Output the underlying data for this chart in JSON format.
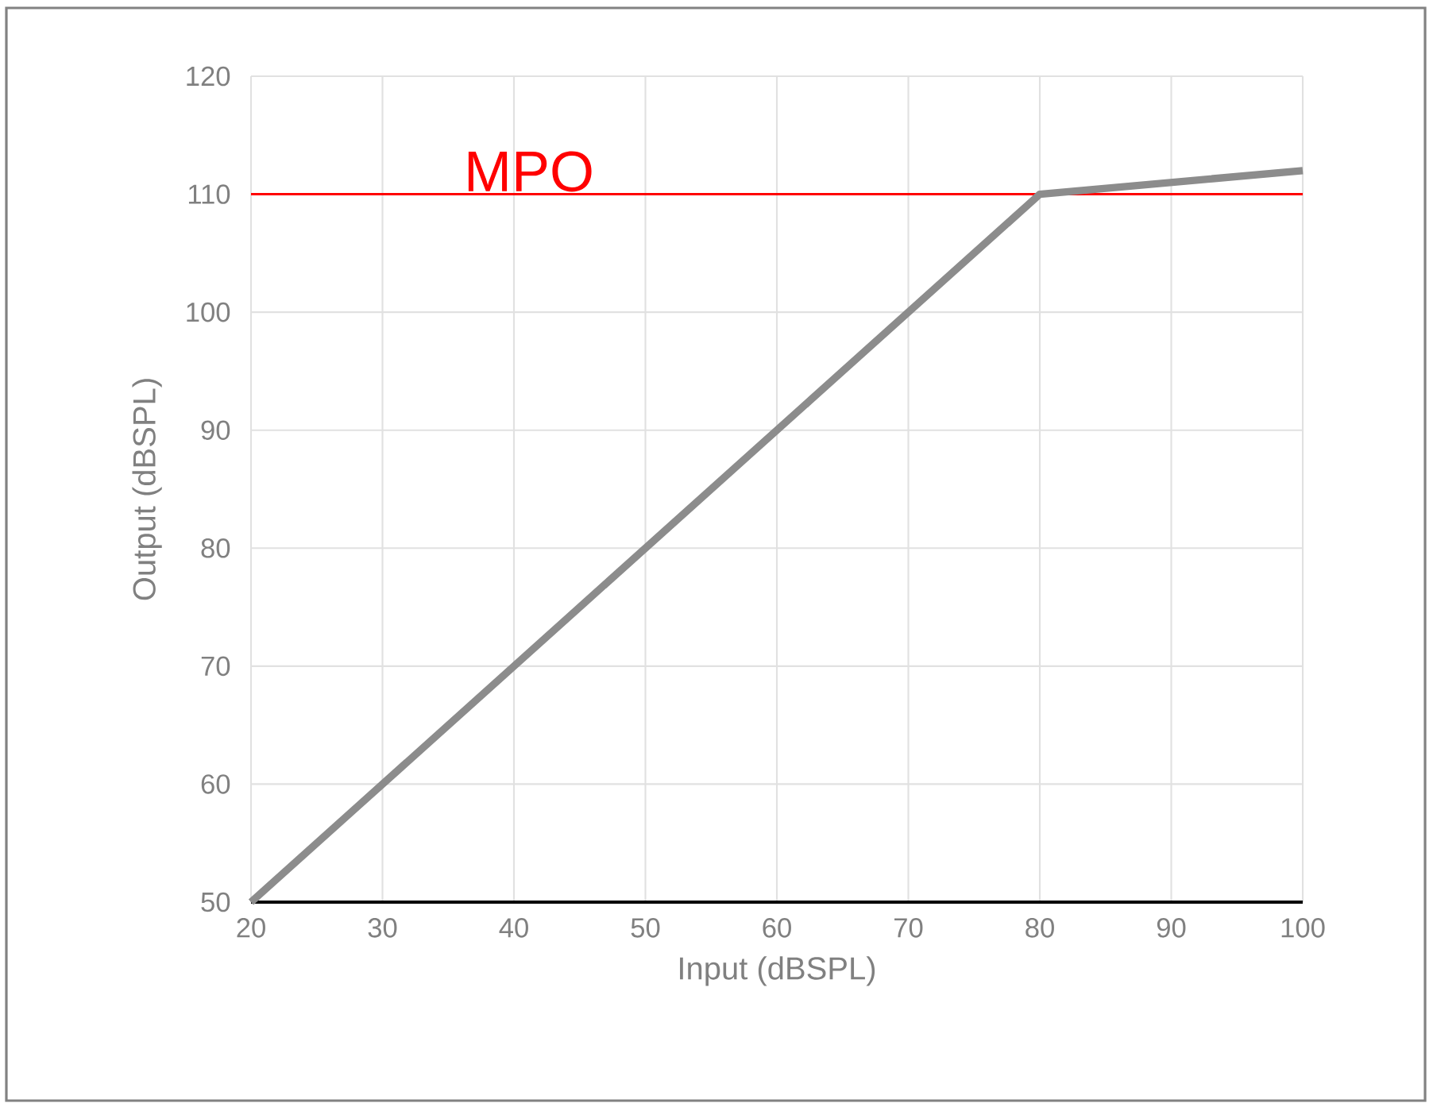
{
  "chart_data": {
    "type": "line",
    "xlabel": "Input (dBSPL)",
    "ylabel": "Output (dBSPL)",
    "x": [
      20,
      80,
      100
    ],
    "series": [
      {
        "color": "#8c8c8c",
        "values": [
          50,
          110,
          112
        ]
      }
    ],
    "xlim": [
      20,
      100
    ],
    "xticks": [
      20,
      30,
      40,
      50,
      60,
      70,
      80,
      90,
      100
    ],
    "ylim": [
      50,
      120
    ],
    "yticks": [
      50,
      60,
      70,
      80,
      90,
      100,
      110,
      120
    ],
    "grid": true,
    "marker": "none",
    "line_style": "solid",
    "ref_lines": [
      {
        "axis": "y",
        "value": 110,
        "label": "MPO",
        "color": "#ff0000",
        "line_style": "solid"
      }
    ]
  }
}
